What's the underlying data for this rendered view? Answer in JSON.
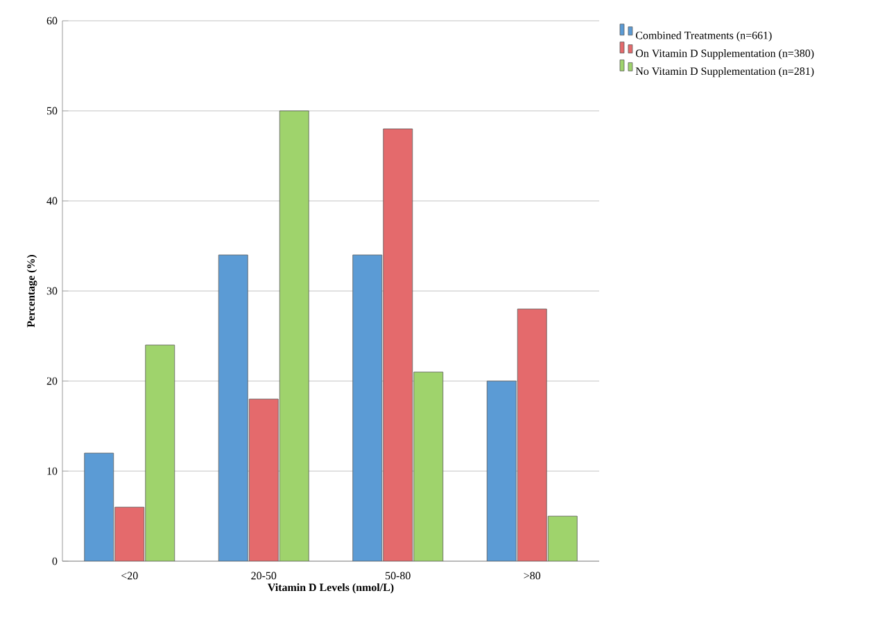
{
  "chart_data": {
    "type": "bar",
    "xlabel": "Vitamin D Levels (nmol/L)",
    "ylabel": "Percentage (%)",
    "categories": [
      "<20",
      "20-50",
      "50-80",
      ">80"
    ],
    "series": [
      {
        "name": "Combined Treatments (n=661)",
        "color": "#5b9bd5",
        "values": [
          12,
          34,
          34,
          20
        ]
      },
      {
        "name": "On Vitamin D Supplementation (n=380)",
        "color": "#e46a6c",
        "values": [
          6,
          18,
          48,
          28
        ]
      },
      {
        "name": "No Vitamin D Supplementation (n=281)",
        "color": "#9fd36c",
        "values": [
          24,
          50,
          21,
          5
        ]
      }
    ],
    "ylim": [
      0,
      60
    ],
    "yticks": [
      0,
      10,
      20,
      30,
      40,
      50,
      60
    ],
    "grid": "y",
    "legend": "top right"
  }
}
